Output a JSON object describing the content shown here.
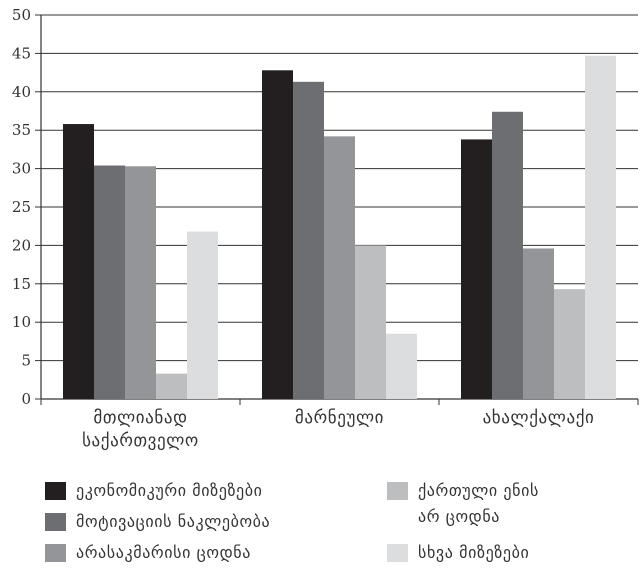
{
  "chart_data": {
    "type": "bar",
    "categories": [
      [
        "მთლიანად",
        "საქართველო"
      ],
      [
        "მარნეული"
      ],
      [
        "ახალქალაქი"
      ]
    ],
    "series": [
      {
        "name": "ეკონომიკური მიზეზები",
        "color": "#231f20",
        "values": [
          35.8,
          42.8,
          33.8
        ]
      },
      {
        "name": "მოტივაციის ნაკლებობა",
        "color": "#6d6e71",
        "values": [
          30.4,
          41.3,
          37.4
        ]
      },
      {
        "name": "არასაკმარისი ცოდნა",
        "color": "#939598",
        "values": [
          30.3,
          34.2,
          19.6
        ]
      },
      {
        "name": "ქართული ენის\nარ ცოდნა",
        "color": "#bcbec0",
        "values": [
          3.3,
          20.0,
          14.3
        ]
      },
      {
        "name": "სხვა მიზეზები",
        "color": "#dcddde",
        "values": [
          21.8,
          8.5,
          44.7
        ]
      }
    ],
    "ylim": [
      0,
      50
    ],
    "yticks": [
      0,
      5,
      10,
      15,
      20,
      25,
      30,
      35,
      40,
      45,
      50
    ],
    "grid": true,
    "legend_position": "bottom"
  }
}
